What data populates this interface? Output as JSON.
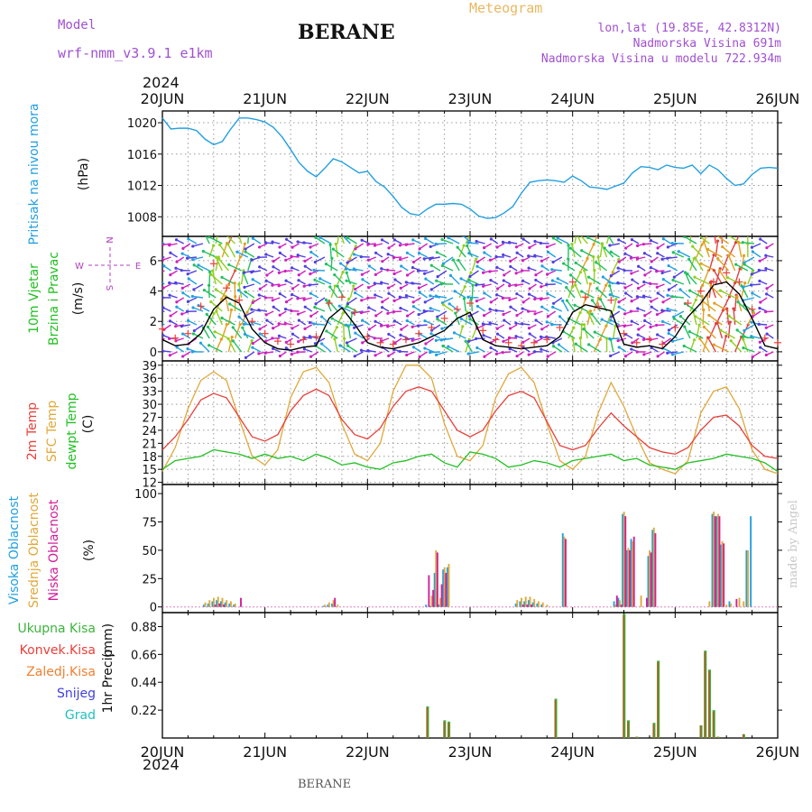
{
  "header": {
    "model_label": "Model",
    "model_name": "wrf-nmm_v3.9.1 e1km",
    "title": "BERANE",
    "product": "Meteogram",
    "location": "lon,lat (19.85E, 42.8312N)",
    "elevation": "Nadmorska Visina 691m",
    "model_elevation": "Nadmorska Visina u modelu 722.934m",
    "year_top": "2024",
    "year_bottom": "2024",
    "footer_name": "BERANE",
    "credit": "made by Angel",
    "compass": {
      "n": "N",
      "s": "S",
      "e": "E",
      "w": "W"
    }
  },
  "colors": {
    "pressure": "#22a0e0",
    "temp_2m": "#e8403a",
    "temp_sfc": "#e0a83a",
    "dewpoint": "#22c022",
    "cloud_high": "#22a0e0",
    "cloud_mid": "#e0a83a",
    "cloud_low": "#d0209a",
    "precip_total": "#3cb43c",
    "precip_conv": "#e8403a",
    "precip_frozen": "#f08030",
    "snow": "#4040e0",
    "graupel": "#22c0c0",
    "wind_mean": "#000000",
    "gust": "#e8403a"
  },
  "chart_data": [
    {
      "type": "line",
      "name": "pressure",
      "ylabel": "Pritisak na nivou mora",
      "unit": "(hPa)",
      "x_ticks": [
        "20JUN",
        "21JUN",
        "22JUN",
        "23JUN",
        "24JUN",
        "25JUN",
        "26JUN"
      ],
      "ylim": [
        1005.5,
        1021.5
      ],
      "yticks": [
        1008,
        1012,
        1016,
        1020
      ],
      "grid": true,
      "x": [
        0,
        2,
        4,
        6,
        8,
        10,
        12,
        14,
        16,
        18,
        20,
        22,
        24,
        26,
        28,
        30,
        32,
        34,
        36,
        38,
        40,
        42,
        44,
        46,
        48,
        50,
        52,
        54,
        56,
        58,
        60,
        62,
        64,
        66,
        68,
        70,
        72,
        74,
        76,
        78,
        80,
        82,
        84,
        86,
        88,
        90,
        92,
        94,
        96,
        98,
        100,
        102,
        104,
        106,
        108,
        110,
        112,
        114,
        116,
        118,
        120,
        122,
        124,
        126,
        128,
        130,
        132,
        134,
        136,
        138,
        140,
        142,
        144
      ],
      "series": [
        {
          "name": "pressure",
          "values": [
            1020.6,
            1019.2,
            1019.3,
            1019.3,
            1019.0,
            1017.9,
            1017.2,
            1017.6,
            1019.2,
            1020.6,
            1020.6,
            1020.4,
            1020.1,
            1019.4,
            1018.2,
            1016.6,
            1014.9,
            1013.8,
            1013.1,
            1014.2,
            1015.4,
            1015.0,
            1014.3,
            1013.6,
            1013.8,
            1012.5,
            1011.8,
            1010.6,
            1009.2,
            1008.4,
            1008.2,
            1009.0,
            1009.6,
            1009.6,
            1009.7,
            1009.6,
            1009.0,
            1008.1,
            1007.8,
            1007.9,
            1008.5,
            1009.3,
            1011.0,
            1012.4,
            1012.6,
            1012.7,
            1012.6,
            1012.4,
            1013.2,
            1012.6,
            1011.8,
            1011.7,
            1011.5,
            1011.9,
            1012.3,
            1013.6,
            1014.4,
            1014.3,
            1014.0,
            1014.6,
            1014.3,
            1014.2,
            1014.6,
            1013.5,
            1014.6,
            1014.0,
            1012.9,
            1012.0,
            1012.2,
            1013.4,
            1014.2,
            1014.3,
            1014.2
          ]
        }
      ]
    },
    {
      "type": "line",
      "name": "wind",
      "ylabel": "10m Vjetar Brzina i Pravac",
      "unit": "(m/s)",
      "x_ticks": [
        "20JUN",
        "21JUN",
        "22JUN",
        "23JUN",
        "24JUN",
        "25JUN",
        "26JUN"
      ],
      "ylim": [
        -0.6,
        7.6
      ],
      "yticks": [
        0,
        2,
        4,
        6
      ],
      "grid": true,
      "x": [
        0,
        3,
        6,
        9,
        12,
        15,
        18,
        21,
        24,
        27,
        30,
        33,
        36,
        39,
        42,
        45,
        48,
        51,
        54,
        57,
        60,
        63,
        66,
        69,
        72,
        75,
        78,
        81,
        84,
        87,
        90,
        93,
        96,
        99,
        102,
        105,
        108,
        111,
        114,
        117,
        120,
        123,
        126,
        129,
        132,
        135,
        138,
        141,
        144
      ],
      "series": [
        {
          "name": "speed",
          "values": [
            0.8,
            0.4,
            0.5,
            1.2,
            2.8,
            3.6,
            3.2,
            1.5,
            0.6,
            0.2,
            0.1,
            0.3,
            0.4,
            2.2,
            2.9,
            1.8,
            0.6,
            0.3,
            0.2,
            0.4,
            0.6,
            1.0,
            1.4,
            2.2,
            2.6,
            0.8,
            0.4,
            0.3,
            0.2,
            0.3,
            0.4,
            1.0,
            2.6,
            3.1,
            2.9,
            2.7,
            0.5,
            0.3,
            0.4,
            0.2,
            1.0,
            2.3,
            3.2,
            4.4,
            4.6,
            3.8,
            2.2,
            0.4,
            0.2
          ]
        },
        {
          "name": "gust",
          "values": [
            1.5,
            0.9,
            1.2,
            3.0,
            5.8,
            4.2,
            3.4,
            2.0,
            1.2,
            0.7,
            0.5,
            0.8,
            1.0,
            3.2,
            3.6,
            2.6,
            1.0,
            0.6,
            0.5,
            0.8,
            1.2,
            1.6,
            2.2,
            2.8,
            3.2,
            1.4,
            0.8,
            0.6,
            0.4,
            0.6,
            0.8,
            1.6,
            4.6,
            3.6,
            3.0,
            3.4,
            1.2,
            0.6,
            0.8,
            0.5,
            1.6,
            3.2,
            4.0,
            4.6,
            5.2,
            4.6,
            2.8,
            0.9,
            0.6
          ]
        }
      ]
    },
    {
      "type": "line",
      "name": "temperature",
      "ylabel": [
        "2m Temp",
        "SFC Temp",
        "dewpt Temp"
      ],
      "unit": "(C)",
      "x_ticks": [
        "20JUN",
        "21JUN",
        "22JUN",
        "23JUN",
        "24JUN",
        "25JUN",
        "26JUN"
      ],
      "ylim": [
        11.5,
        40
      ],
      "yticks": [
        12,
        15,
        18,
        21,
        24,
        27,
        30,
        33,
        36,
        39
      ],
      "grid": true,
      "x": [
        0,
        3,
        6,
        9,
        12,
        15,
        18,
        21,
        24,
        27,
        30,
        33,
        36,
        39,
        42,
        45,
        48,
        51,
        54,
        57,
        60,
        63,
        66,
        69,
        72,
        75,
        78,
        81,
        84,
        87,
        90,
        93,
        96,
        99,
        102,
        105,
        108,
        111,
        114,
        117,
        120,
        123,
        126,
        129,
        132,
        135,
        138,
        141,
        144
      ],
      "series": [
        {
          "name": "2m Temp",
          "values": [
            19.5,
            22.5,
            26.5,
            31.0,
            32.5,
            31.5,
            27.0,
            22.5,
            21.5,
            23.0,
            28.5,
            32.0,
            33.5,
            32.0,
            26.5,
            23.0,
            22.0,
            24.5,
            29.5,
            33.0,
            34.0,
            33.0,
            28.5,
            24.0,
            22.5,
            24.0,
            28.5,
            32.0,
            33.0,
            31.5,
            26.0,
            20.5,
            19.5,
            20.5,
            24.5,
            28.0,
            25.0,
            22.5,
            20.0,
            19.0,
            18.5,
            20.0,
            24.0,
            27.0,
            27.5,
            25.0,
            20.5,
            18.0,
            17.5
          ]
        },
        {
          "name": "SFC Temp",
          "values": [
            14.5,
            20.0,
            29.0,
            35.5,
            37.5,
            35.5,
            26.5,
            18.0,
            16.0,
            19.5,
            31.5,
            37.5,
            38.5,
            35.0,
            25.5,
            18.5,
            17.0,
            21.0,
            33.0,
            39.0,
            39.0,
            36.0,
            25.5,
            18.0,
            17.0,
            20.5,
            31.5,
            37.0,
            38.5,
            35.0,
            25.5,
            17.0,
            15.0,
            18.0,
            28.0,
            35.0,
            29.5,
            22.5,
            16.5,
            15.0,
            14.0,
            17.0,
            28.0,
            33.0,
            34.0,
            29.0,
            19.5,
            15.0,
            14.0
          ]
        },
        {
          "name": "dewpt Temp",
          "values": [
            15.0,
            17.0,
            17.5,
            18.0,
            19.5,
            19.0,
            18.5,
            17.5,
            18.5,
            17.5,
            18.0,
            17.0,
            18.5,
            17.5,
            16.0,
            16.5,
            15.5,
            15.0,
            16.5,
            17.0,
            18.0,
            18.5,
            16.5,
            15.5,
            19.0,
            18.5,
            17.5,
            15.5,
            16.0,
            17.0,
            16.5,
            15.5,
            17.0,
            17.5,
            18.0,
            18.5,
            17.0,
            17.5,
            16.0,
            15.5,
            15.0,
            16.5,
            17.0,
            17.5,
            18.5,
            18.0,
            17.5,
            16.5,
            14.5
          ]
        }
      ]
    },
    {
      "type": "bar",
      "name": "cloud_cover",
      "ylabel": [
        "Visoka Oblacnost",
        "Srednja Oblacnost",
        "Niska Oblacnost"
      ],
      "unit": "(%)",
      "x_ticks": [
        "20JUN",
        "21JUN",
        "22JUN",
        "23JUN",
        "24JUN",
        "25JUN",
        "26JUN"
      ],
      "ylim": [
        -5,
        108
      ],
      "yticks": [
        0,
        25,
        50,
        75,
        100
      ],
      "grid": false,
      "x": [
        10,
        11,
        12,
        13,
        14,
        15,
        16,
        17,
        18,
        19,
        20,
        21,
        38,
        39,
        40,
        41,
        59,
        60,
        61,
        62,
        63,
        64,
        65,
        66,
        67,
        68,
        69,
        83,
        84,
        85,
        86,
        87,
        88,
        89,
        90,
        91,
        92,
        93,
        94,
        98,
        99,
        106,
        107,
        108,
        109,
        110,
        111,
        112,
        113,
        114,
        115,
        117,
        118,
        120,
        125,
        126,
        127,
        128,
        129,
        130,
        131,
        132,
        133,
        134,
        135,
        136,
        137,
        138,
        139,
        140
      ],
      "series": [
        {
          "name": "high",
          "values": [
            2,
            3,
            5,
            6,
            5,
            4,
            3,
            2,
            0,
            0,
            0,
            0,
            1,
            2,
            3,
            0,
            0,
            0,
            0,
            2,
            1,
            30,
            2,
            33,
            35,
            0,
            0,
            3,
            5,
            5,
            6,
            4,
            3,
            2,
            0,
            0,
            0,
            0,
            65,
            0,
            0,
            5,
            8,
            82,
            50,
            60,
            0,
            0,
            0,
            45,
            68,
            0,
            0,
            0,
            0,
            0,
            0,
            0,
            82,
            80,
            55,
            0,
            5,
            0,
            0,
            0,
            50,
            80,
            0,
            0
          ]
        },
        {
          "name": "mid",
          "values": [
            4,
            6,
            8,
            9,
            8,
            6,
            5,
            3,
            0,
            0,
            0,
            0,
            2,
            4,
            6,
            2,
            0,
            0,
            0,
            0,
            10,
            50,
            8,
            35,
            38,
            0,
            0,
            6,
            8,
            9,
            9,
            7,
            5,
            4,
            2,
            0,
            0,
            0,
            62,
            0,
            0,
            2,
            6,
            84,
            52,
            58,
            0,
            10,
            0,
            50,
            70,
            0,
            0,
            0,
            0,
            0,
            0,
            5,
            84,
            82,
            58,
            2,
            3,
            0,
            8,
            5,
            50,
            0,
            0,
            0
          ]
        },
        {
          "name": "low",
          "values": [
            0,
            0,
            2,
            3,
            2,
            0,
            0,
            0,
            8,
            0,
            0,
            0,
            0,
            0,
            8,
            0,
            0,
            0,
            0,
            28,
            15,
            48,
            20,
            30,
            0,
            0,
            0,
            0,
            2,
            2,
            2,
            0,
            0,
            0,
            0,
            0,
            0,
            0,
            60,
            0,
            0,
            10,
            2,
            80,
            50,
            62,
            0,
            0,
            8,
            48,
            65,
            0,
            0,
            0,
            0,
            0,
            0,
            0,
            80,
            80,
            56,
            0,
            0,
            7,
            0,
            0,
            0,
            0,
            0,
            0
          ]
        }
      ]
    },
    {
      "type": "bar",
      "name": "precipitation",
      "ylabel": "1hr Precip",
      "unit": "(mm)",
      "legend": [
        "Ukupna Kisa",
        "Konvek.Kisa",
        "Zaledj.Kisa",
        "Snijeg",
        "Grad"
      ],
      "x_ticks": [
        "20JUN",
        "21JUN",
        "22JUN",
        "23JUN",
        "24JUN",
        "25JUN",
        "26JUN"
      ],
      "ylim": [
        0,
        0.99
      ],
      "yticks": [
        0.22,
        0.44,
        0.66,
        0.88
      ],
      "grid": false,
      "x": [
        62,
        66,
        67,
        92,
        108,
        109,
        111,
        115,
        116,
        126,
        127,
        128,
        129,
        130,
        136
      ],
      "series": [
        {
          "name": "Ukupna Kisa",
          "values": [
            0.25,
            0.14,
            0.13,
            0.31,
            0.98,
            0.14,
            0.01,
            0.12,
            0.61,
            0.1,
            0.69,
            0.54,
            0.22,
            0.01,
            0.03
          ]
        },
        {
          "name": "Konvek.Kisa",
          "values": [
            0.24,
            0.13,
            0.12,
            0.3,
            0.97,
            0.13,
            0.01,
            0.11,
            0.6,
            0.1,
            0.68,
            0.53,
            0.21,
            0.01,
            0.03
          ]
        }
      ]
    }
  ]
}
